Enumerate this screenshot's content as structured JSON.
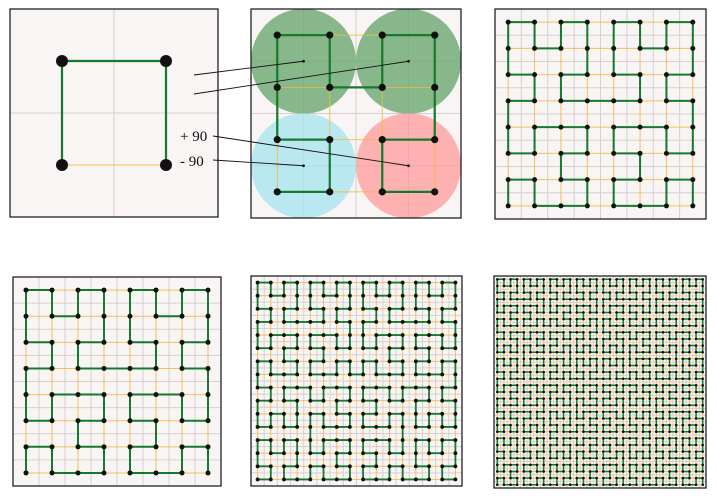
{
  "labels": {
    "plus": "+ 90",
    "minus": "- 90"
  },
  "panels": [
    {
      "id": "order-1",
      "order": 1
    },
    {
      "id": "order-2",
      "order": 2
    },
    {
      "id": "order-3",
      "order": 3
    },
    {
      "id": "order-3b",
      "order": 3
    },
    {
      "id": "order-4",
      "order": 4
    },
    {
      "id": "order-5",
      "order": 5
    }
  ],
  "quadrant_colors": {
    "top-left": "#6aa86f",
    "top-right": "#6aa86f",
    "bottom-left": "#a6e3f0",
    "bottom-right": "#ff9a9a"
  },
  "colors": {
    "curve": "#157a2b",
    "connector": "#f5b73a",
    "grid": "#d8d0d0",
    "panel_bg": "#f8f5f4",
    "node": "#111111"
  }
}
